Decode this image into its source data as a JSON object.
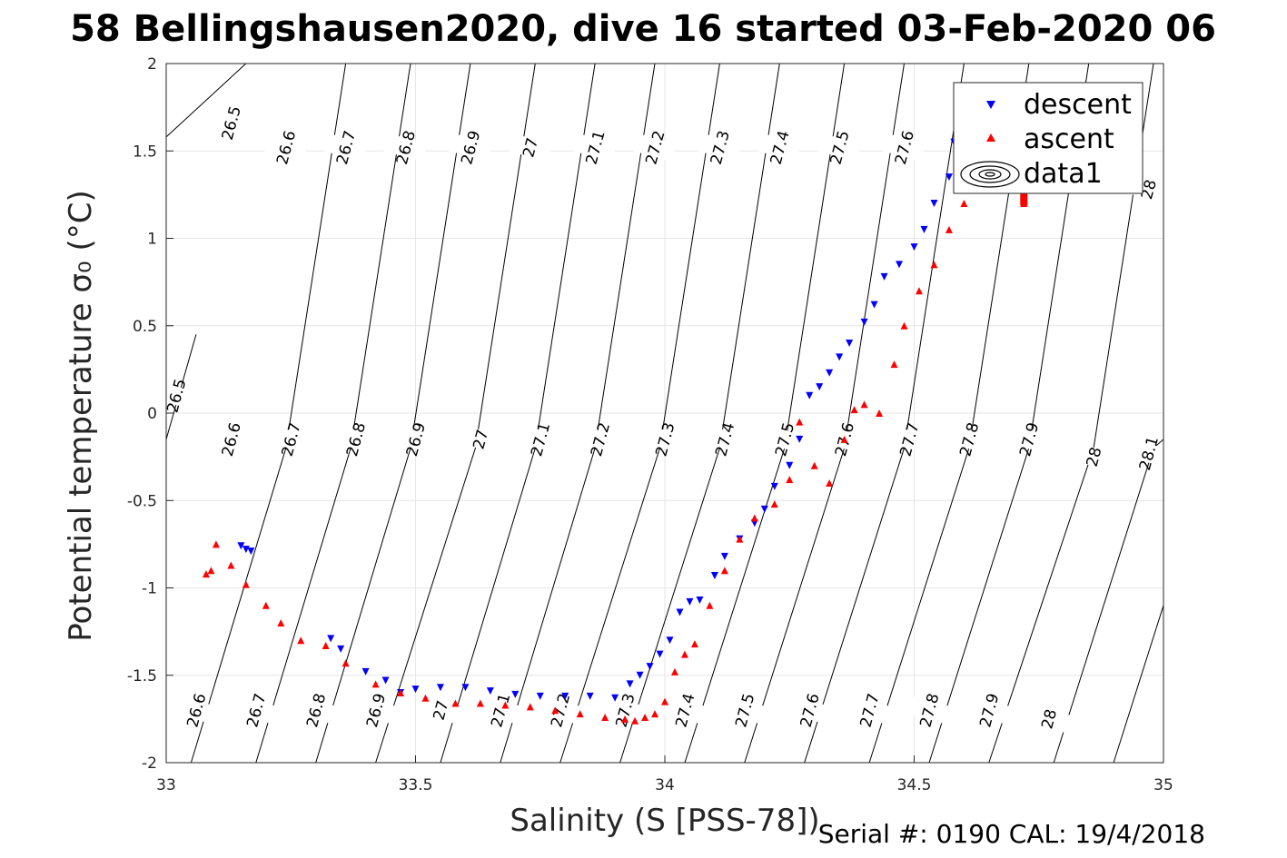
{
  "chart_data": {
    "type": "scatter",
    "title": "58 Bellingshausen2020, dive 16 started 03-Feb-2020 06",
    "xlabel": "Salinity (S [PSS-78])",
    "ylabel": "Potential temperature σ₀ (°C)",
    "xlim": [
      33,
      35
    ],
    "ylim": [
      -2,
      2
    ],
    "xticks": [
      "33",
      "33.5",
      "34",
      "34.5",
      "35"
    ],
    "yticks": [
      "-2",
      "-1.5",
      "-1",
      "-0.5",
      "0",
      "0.5",
      "1",
      "1.5",
      "2"
    ],
    "grid": true,
    "legend_position": "top-right",
    "legend": [
      "descent",
      "ascent",
      "data1"
    ],
    "footer": "Serial #: 0190  CAL: 19/4/2018",
    "colors": {
      "descent": "#0000ff",
      "ascent": "#ff0000",
      "contour": "#000000",
      "grid": "#e6e6e6"
    },
    "contours": [
      {
        "label": "26.5",
        "points": [
          [
            33.0,
            1.58
          ],
          [
            33.16,
            2.0
          ]
        ],
        "label_points": [
          [
            33.13,
            1.66
          ]
        ]
      },
      {
        "label": "26.6",
        "points": [
          [
            33.05,
            -2.0
          ],
          [
            33.24,
            -0.2
          ],
          [
            33.36,
            2.0
          ]
        ],
        "label_points": [
          [
            33.06,
            -1.7
          ],
          [
            33.13,
            -0.15
          ],
          [
            33.24,
            1.52
          ]
        ]
      },
      {
        "label": "26.7",
        "points": [
          [
            33.18,
            -2.0
          ],
          [
            33.37,
            -0.2
          ],
          [
            33.49,
            2.0
          ]
        ],
        "label_points": [
          [
            33.18,
            -1.7
          ],
          [
            33.25,
            -0.15
          ],
          [
            33.36,
            1.52
          ]
        ]
      },
      {
        "label": "26.8",
        "points": [
          [
            33.3,
            -2.0
          ],
          [
            33.49,
            -0.2
          ],
          [
            33.61,
            2.0
          ]
        ],
        "label_points": [
          [
            33.3,
            -1.7
          ],
          [
            33.38,
            -0.15
          ],
          [
            33.48,
            1.52
          ]
        ]
      },
      {
        "label": "26.9",
        "points": [
          [
            33.42,
            -2.0
          ],
          [
            33.62,
            -0.2
          ],
          [
            33.74,
            2.0
          ]
        ],
        "label_points": [
          [
            33.42,
            -1.7
          ],
          [
            33.5,
            -0.15
          ],
          [
            33.61,
            1.52
          ]
        ]
      },
      {
        "label": "27",
        "points": [
          [
            33.55,
            -2.0
          ],
          [
            33.74,
            -0.2
          ],
          [
            33.86,
            2.0
          ]
        ],
        "label_points": [
          [
            33.55,
            -1.7
          ],
          [
            33.63,
            -0.15
          ],
          [
            33.73,
            1.52
          ]
        ]
      },
      {
        "label": "27.1",
        "points": [
          [
            33.67,
            -2.0
          ],
          [
            33.86,
            -0.2
          ],
          [
            33.98,
            2.0
          ]
        ],
        "label_points": [
          [
            33.67,
            -1.7
          ],
          [
            33.75,
            -0.15
          ],
          [
            33.86,
            1.52
          ]
        ]
      },
      {
        "label": "27.2",
        "points": [
          [
            33.79,
            -2.0
          ],
          [
            33.99,
            -0.2
          ],
          [
            34.11,
            2.0
          ]
        ],
        "label_points": [
          [
            33.79,
            -1.7
          ],
          [
            33.87,
            -0.15
          ],
          [
            33.98,
            1.52
          ]
        ]
      },
      {
        "label": "27.3",
        "points": [
          [
            33.91,
            -2.0
          ],
          [
            34.11,
            -0.2
          ],
          [
            34.23,
            2.0
          ]
        ],
        "label_points": [
          [
            33.92,
            -1.7
          ],
          [
            34.0,
            -0.15
          ],
          [
            34.11,
            1.52
          ]
        ]
      },
      {
        "label": "27.4",
        "points": [
          [
            34.04,
            -2.0
          ],
          [
            34.24,
            -0.2
          ],
          [
            34.36,
            2.0
          ]
        ],
        "label_points": [
          [
            34.04,
            -1.7
          ],
          [
            34.12,
            -0.15
          ],
          [
            34.23,
            1.52
          ]
        ]
      },
      {
        "label": "27.5",
        "points": [
          [
            34.16,
            -2.0
          ],
          [
            34.36,
            -0.2
          ],
          [
            34.48,
            2.0
          ]
        ],
        "label_points": [
          [
            34.16,
            -1.7
          ],
          [
            34.24,
            -0.15
          ],
          [
            34.35,
            1.52
          ]
        ]
      },
      {
        "label": "27.6",
        "points": [
          [
            34.28,
            -2.0
          ],
          [
            34.48,
            -0.2
          ],
          [
            34.6,
            2.0
          ]
        ],
        "label_points": [
          [
            34.29,
            -1.7
          ],
          [
            34.36,
            -0.15
          ],
          [
            34.48,
            1.52
          ]
        ]
      },
      {
        "label": "27.7",
        "points": [
          [
            34.41,
            -2.0
          ],
          [
            34.61,
            -0.2
          ],
          [
            34.73,
            2.0
          ]
        ],
        "label_points": [
          [
            34.41,
            -1.7
          ],
          [
            34.49,
            -0.15
          ]
        ]
      },
      {
        "label": "27.8",
        "points": [
          [
            34.53,
            -2.0
          ],
          [
            34.73,
            -0.2
          ],
          [
            34.85,
            2.0
          ]
        ],
        "label_points": [
          [
            34.53,
            -1.7
          ],
          [
            34.61,
            -0.15
          ]
        ]
      },
      {
        "label": "27.9",
        "points": [
          [
            34.65,
            -2.0
          ],
          [
            34.86,
            -0.2
          ],
          [
            34.98,
            2.0
          ]
        ],
        "label_points": [
          [
            34.65,
            -1.7
          ],
          [
            34.73,
            -0.15
          ]
        ]
      },
      {
        "label": "28",
        "points": [
          [
            34.78,
            -2.0
          ],
          [
            34.98,
            -0.2
          ],
          [
            35.0,
            -0.15
          ]
        ],
        "label_points": [
          [
            34.77,
            -1.75
          ],
          [
            34.86,
            -0.25
          ],
          [
            34.97,
            1.28
          ]
        ]
      },
      {
        "label": "28.1",
        "points": [
          [
            34.9,
            -2.0
          ],
          [
            35.0,
            -1.1
          ]
        ],
        "label_points": [
          [
            34.97,
            -0.23
          ]
        ]
      },
      {
        "label": "26.5",
        "points": [
          [
            33.0,
            -0.15
          ],
          [
            33.06,
            0.45
          ]
        ],
        "label_points": [
          [
            33.02,
            0.1
          ]
        ]
      }
    ],
    "series": [
      {
        "name": "descent",
        "marker": "triangle-down",
        "x": [
          33.15,
          33.16,
          33.17,
          33.33,
          33.35,
          33.4,
          33.44,
          33.47,
          33.5,
          33.55,
          33.6,
          33.65,
          33.7,
          33.75,
          33.8,
          33.85,
          33.9,
          33.93,
          33.95,
          33.97,
          33.99,
          34.01,
          34.03,
          34.05,
          34.07,
          34.1,
          34.12,
          34.15,
          34.18,
          34.2,
          34.22,
          34.25,
          34.27,
          34.29,
          34.31,
          34.33,
          34.35,
          34.37,
          34.4,
          34.42,
          34.44,
          34.47,
          34.5,
          34.52,
          34.54,
          34.57,
          34.58
        ],
        "y": [
          -0.76,
          -0.78,
          -0.79,
          -1.29,
          -1.35,
          -1.48,
          -1.53,
          -1.6,
          -1.58,
          -1.57,
          -1.57,
          -1.59,
          -1.61,
          -1.62,
          -1.62,
          -1.62,
          -1.63,
          -1.55,
          -1.5,
          -1.45,
          -1.38,
          -1.3,
          -1.14,
          -1.08,
          -1.07,
          -0.93,
          -0.82,
          -0.72,
          -0.63,
          -0.55,
          -0.42,
          -0.3,
          -0.15,
          0.1,
          0.15,
          0.23,
          0.32,
          0.4,
          0.52,
          0.62,
          0.78,
          0.85,
          0.95,
          1.05,
          1.2,
          1.35,
          1.55
        ]
      },
      {
        "name": "ascent",
        "marker": "triangle-up",
        "x": [
          33.08,
          33.09,
          33.1,
          33.13,
          33.16,
          33.2,
          33.23,
          33.27,
          33.32,
          33.36,
          33.42,
          33.47,
          33.52,
          33.58,
          33.63,
          33.68,
          33.73,
          33.78,
          33.83,
          33.88,
          33.92,
          33.94,
          33.96,
          33.98,
          34.0,
          34.02,
          34.04,
          34.06,
          34.09,
          34.12,
          34.15,
          34.18,
          34.22,
          34.25,
          34.27,
          34.3,
          34.33,
          34.36,
          34.38,
          34.4,
          34.43,
          34.46,
          34.48,
          34.51,
          34.54,
          34.57,
          34.6,
          34.62,
          34.65,
          34.7,
          34.72
        ],
        "y": [
          -0.92,
          -0.9,
          -0.75,
          -0.87,
          -0.98,
          -1.1,
          -1.2,
          -1.3,
          -1.33,
          -1.43,
          -1.55,
          -1.6,
          -1.63,
          -1.66,
          -1.66,
          -1.67,
          -1.68,
          -1.7,
          -1.72,
          -1.74,
          -1.75,
          -1.76,
          -1.74,
          -1.72,
          -1.65,
          -1.48,
          -1.38,
          -1.32,
          -1.1,
          -0.9,
          -0.72,
          -0.6,
          -0.52,
          -0.38,
          -0.05,
          -0.3,
          -0.4,
          -0.15,
          0.02,
          0.05,
          0.0,
          0.28,
          0.5,
          0.7,
          0.85,
          1.05,
          1.2,
          1.3,
          1.45,
          1.3,
          1.2
        ]
      }
    ],
    "data1_blob": {
      "x": 34.72,
      "y": 1.25
    }
  }
}
